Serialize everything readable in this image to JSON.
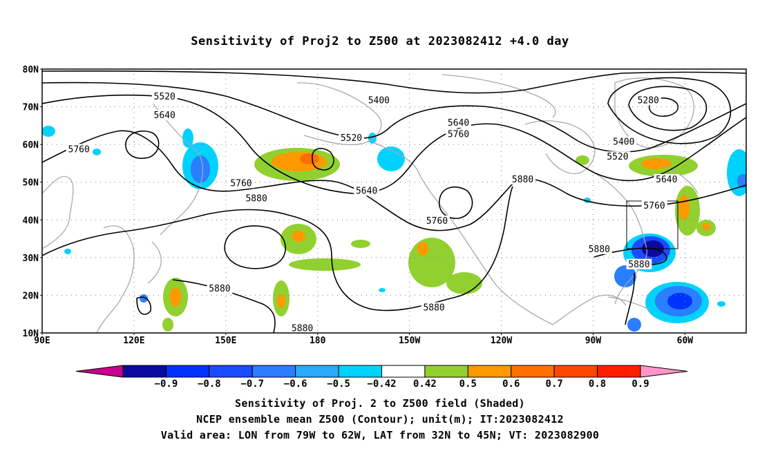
{
  "title": "Sensitivity of Proj2 to Z500 at 2023082412 +4.0 day",
  "map": {
    "lon_range": [
      90,
      320
    ],
    "lat_range": [
      10,
      80
    ],
    "lat_labels": [
      "10N",
      "20N",
      "30N",
      "40N",
      "50N",
      "60N",
      "70N",
      "80N"
    ],
    "lat_values": [
      10,
      20,
      30,
      40,
      50,
      60,
      70,
      80
    ],
    "lon_labels": [
      "90E",
      "120E",
      "150E",
      "180",
      "150W",
      "120W",
      "90W",
      "60W"
    ],
    "lon_values": [
      90,
      120,
      150,
      180,
      210,
      240,
      270,
      300
    ],
    "valid_area": {
      "lon": [
        281,
        298
      ],
      "lat": [
        32,
        45
      ]
    },
    "grid": "dotted",
    "coastline_color": "#a8a8a8",
    "contour_labels": [
      {
        "text": "5520",
        "lon": 130,
        "lat": 72.5
      },
      {
        "text": "5640",
        "lon": 130,
        "lat": 67.5
      },
      {
        "text": "5760",
        "lon": 102,
        "lat": 58.5
      },
      {
        "text": "5400",
        "lon": 200,
        "lat": 71.5
      },
      {
        "text": "5280",
        "lon": 288,
        "lat": 71.5
      },
      {
        "text": "5520",
        "lon": 191,
        "lat": 61.5
      },
      {
        "text": "5640",
        "lon": 226,
        "lat": 65.5
      },
      {
        "text": "5760",
        "lon": 226,
        "lat": 62.5
      },
      {
        "text": "5400",
        "lon": 280,
        "lat": 60.5
      },
      {
        "text": "5520",
        "lon": 278,
        "lat": 56.5
      },
      {
        "text": "5640",
        "lon": 196,
        "lat": 47.5
      },
      {
        "text": "5760",
        "lon": 155,
        "lat": 49.5
      },
      {
        "text": "5880",
        "lon": 160,
        "lat": 45.5
      },
      {
        "text": "5760",
        "lon": 219,
        "lat": 39.5
      },
      {
        "text": "5880",
        "lon": 247,
        "lat": 50.5
      },
      {
        "text": "5640",
        "lon": 294,
        "lat": 50.5
      },
      {
        "text": "5760",
        "lon": 290,
        "lat": 43.5
      },
      {
        "text": "5880",
        "lon": 272,
        "lat": 32.0
      },
      {
        "text": "5880",
        "lon": 285,
        "lat": 28.0
      },
      {
        "text": "5880",
        "lon": 148,
        "lat": 21.5
      },
      {
        "text": "5880",
        "lon": 218,
        "lat": 16.5
      },
      {
        "text": "5880",
        "lon": 175,
        "lat": 11.0
      }
    ]
  },
  "colorbar": {
    "labels": [
      "−0.9",
      "−0.8",
      "−0.7",
      "−0.6",
      "−0.5",
      "−0.42",
      "0.42",
      "0.5",
      "0.6",
      "0.7",
      "0.8",
      "0.9"
    ],
    "colors": [
      "#c8008c",
      "#0a0a9e",
      "#0032ff",
      "#1a4cff",
      "#2a7eff",
      "#2aaaff",
      "#00d2ff",
      "#ffffff",
      "#92d030",
      "#ff9900",
      "#ff6e00",
      "#ff4600",
      "#ff1e00",
      "#ff96c8"
    ]
  },
  "captions": [
    "Sensitivity of Proj. 2 to Z500 field (Shaded)",
    "NCEP ensemble mean Z500 (Contour); unit(m); IT:2023082412",
    "Valid area: LON from 79W to 62W, LAT from 32N to 45N; VT: 2023082900"
  ]
}
